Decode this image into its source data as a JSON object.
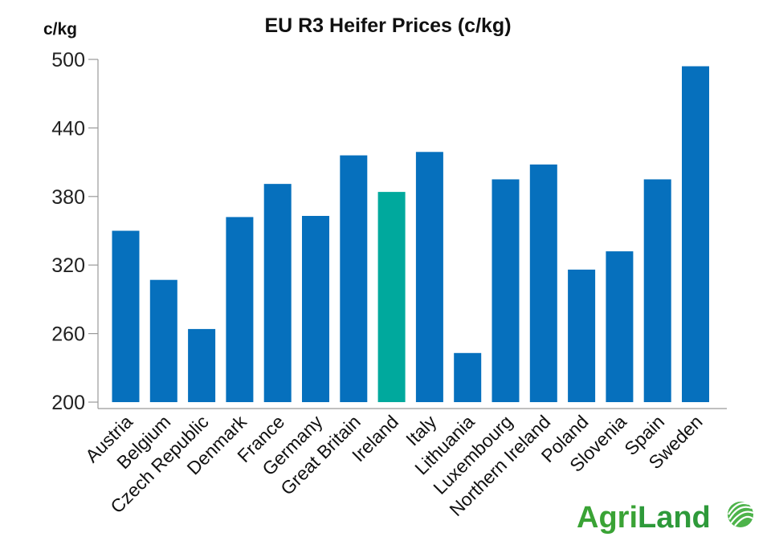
{
  "chart_data": {
    "type": "bar",
    "title": "EU R3 Heifer Prices (c/kg)",
    "ylabel": "c/kg",
    "xlabel": "",
    "ylim": [
      200,
      500
    ],
    "yticks": [
      200,
      260,
      320,
      380,
      440,
      500
    ],
    "categories": [
      "Austria",
      "Belgium",
      "Czech Republic",
      "Denmark",
      "France",
      "Germany",
      "Great Britain",
      "Ireland",
      "Italy",
      "Lithuania",
      "Luxembourg",
      "Northern Ireland",
      "Poland",
      "Slovenia",
      "Spain",
      "Sweden"
    ],
    "values": [
      350,
      307,
      264,
      362,
      391,
      363,
      416,
      384,
      419,
      243,
      395,
      408,
      316,
      332,
      395,
      494
    ],
    "highlight_category": "Ireland",
    "grid": false,
    "colors": {
      "bar": "#0670bd",
      "highlight": "#00a99d",
      "axis": "#999999"
    }
  },
  "logo": {
    "part1": "Agri",
    "part2": "Land",
    "color_part1": "#3aa335",
    "color_part2": "#2e9a3a"
  }
}
